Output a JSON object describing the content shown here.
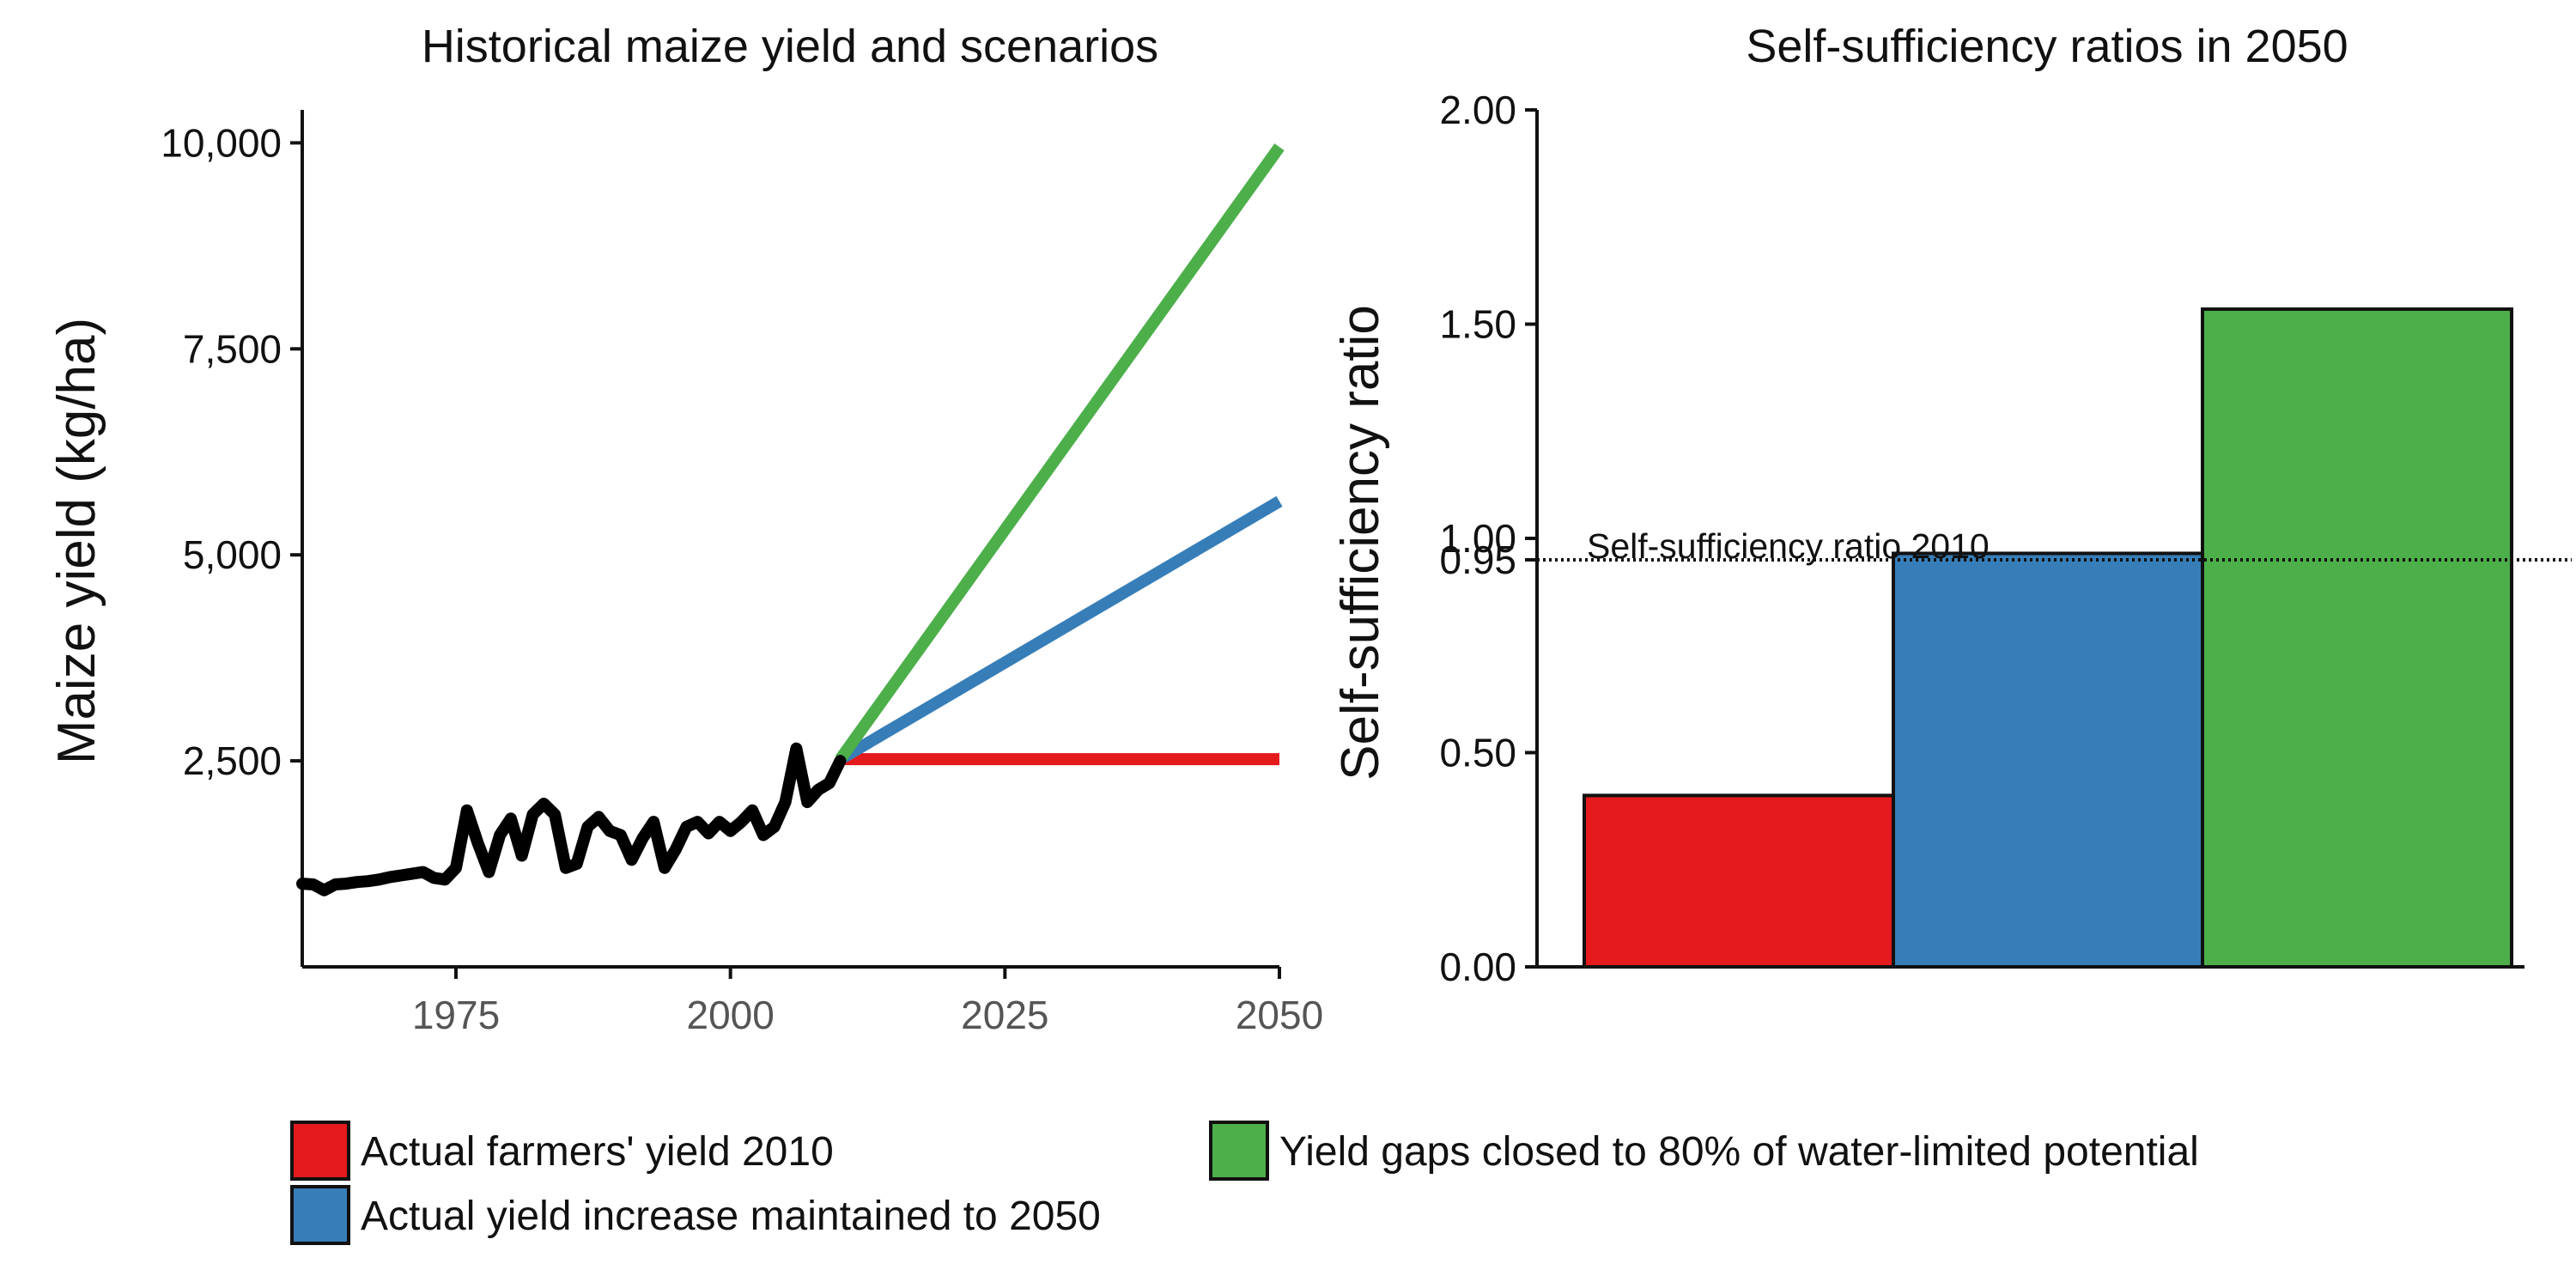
{
  "chart_data": [
    {
      "type": "line",
      "title": "Historical maize yield and scenarios",
      "xlabel": "",
      "ylabel": "Maize yield (kg/ha)",
      "xlim": [
        1961,
        2050
      ],
      "ylim": [
        0,
        10400
      ],
      "x_ticks": [
        1975,
        2000,
        2025,
        2050
      ],
      "x_tick_labels": [
        "1975",
        "2000",
        "2025",
        "2050"
      ],
      "y_ticks": [
        2500,
        5000,
        7500,
        10000
      ],
      "y_tick_labels": [
        "2,500",
        "5,000",
        "7,500",
        "10,000"
      ],
      "grid": false,
      "historical": {
        "color": "#000000",
        "x": [
          1961,
          1962,
          1963,
          1964,
          1965,
          1966,
          1967,
          1968,
          1969,
          1970,
          1971,
          1972,
          1973,
          1974,
          1975,
          1976,
          1977,
          1978,
          1979,
          1980,
          1981,
          1982,
          1983,
          1984,
          1985,
          1986,
          1987,
          1988,
          1989,
          1990,
          1991,
          1992,
          1993,
          1994,
          1995,
          1996,
          1997,
          1998,
          1999,
          2000,
          2001,
          2002,
          2003,
          2004,
          2005,
          2006,
          2007,
          2008,
          2009,
          2010
        ],
        "y": [
          1010,
          1000,
          930,
          1000,
          1010,
          1030,
          1040,
          1060,
          1090,
          1110,
          1130,
          1150,
          1080,
          1060,
          1200,
          1900,
          1500,
          1150,
          1600,
          1800,
          1350,
          1850,
          1980,
          1850,
          1200,
          1250,
          1700,
          1820,
          1650,
          1600,
          1300,
          1560,
          1760,
          1200,
          1420,
          1700,
          1760,
          1620,
          1760,
          1650,
          1760,
          1900,
          1600,
          1700,
          2000,
          2650,
          2000,
          2150,
          2230,
          2500
        ]
      },
      "series": [
        {
          "name": "Actual farmers' yield 2010",
          "color": "#e41a1c",
          "x": [
            2010,
            2050
          ],
          "y": [
            2520,
            2520
          ]
        },
        {
          "name": "Actual yield increase maintained to 2050",
          "color": "#377eb8",
          "x": [
            2010,
            2050
          ],
          "y": [
            2520,
            5650
          ]
        },
        {
          "name": "Yield gaps closed to 80% of water-limited potential",
          "color": "#4daf4a",
          "x": [
            2010,
            2050
          ],
          "y": [
            2520,
            9950
          ]
        }
      ]
    },
    {
      "type": "bar",
      "title": "Self-sufficiency ratios in 2050",
      "xlabel": "",
      "ylabel": "Self-sufficiency ratio",
      "ylim": [
        0,
        2.0
      ],
      "y_ticks": [
        0,
        0.5,
        0.95,
        1.0,
        1.5,
        2.0
      ],
      "y_tick_labels": [
        "0.00",
        "0.50",
        "0.95",
        "1.00",
        "1.50",
        "2.00"
      ],
      "grid": false,
      "categories": [
        "Actual farmers' yield 2010",
        "Actual yield increase maintained to 2050",
        "Yield gaps closed to 80% of water-limited potential"
      ],
      "values": [
        0.4,
        0.965,
        1.535
      ],
      "colors": [
        "#e41a1c",
        "#377eb8",
        "#4daf4a"
      ],
      "reference_line": {
        "value": 0.95,
        "label": "Self-sufficiency ratio 2010",
        "style": "dotted"
      }
    }
  ],
  "legend": {
    "placement": "bottom",
    "items": [
      {
        "label": "Actual farmers' yield 2010",
        "color": "#e41a1c"
      },
      {
        "label": "Actual yield increase maintained to 2050",
        "color": "#377eb8"
      },
      {
        "label": "Yield gaps closed to 80% of water-limited potential",
        "color": "#4daf4a"
      }
    ]
  }
}
